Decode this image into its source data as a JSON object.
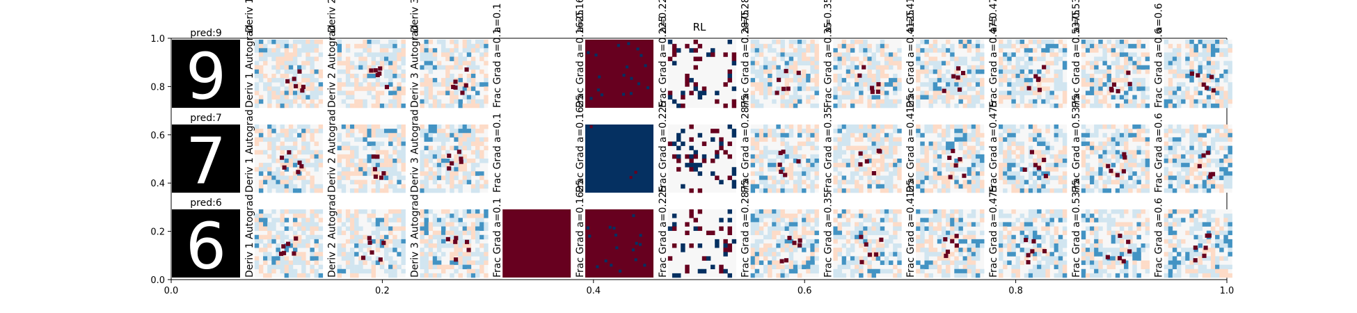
{
  "chart_data": {
    "type": "heatmap",
    "title": "RL",
    "xlabel": "",
    "ylabel": "",
    "xlim": [
      0.0,
      1.0
    ],
    "ylim": [
      0.0,
      1.0
    ],
    "x_ticks": [
      "0.0",
      "0.2",
      "0.4",
      "0.6",
      "0.8",
      "1.0"
    ],
    "y_ticks": [
      "0.0",
      "0.2",
      "0.4",
      "0.6",
      "0.8",
      "1.0"
    ],
    "grid": false,
    "columns": [
      {
        "vertical_label": "",
        "top_label": ""
      },
      {
        "vertical_label": "Deriv 1 Autograd",
        "top_label": "Deriv 1 Autograd"
      },
      {
        "vertical_label": "Deriv 2 Autograd",
        "top_label": "Deriv 2 Autograd"
      },
      {
        "vertical_label": "Deriv 3 Autograd",
        "top_label": "Deriv 3 Autograd"
      },
      {
        "vertical_label": "Frac Grad a=0.1",
        "top_label": "a=0.1"
      },
      {
        "vertical_label": "Frac Grad a=0.1625",
        "top_label": "a=0.1625"
      },
      {
        "vertical_label": "Frac Grad a=0.225",
        "top_label": "a=0.225"
      },
      {
        "vertical_label": "Frac Grad a=0.2875",
        "top_label": "a=0.2875"
      },
      {
        "vertical_label": "Frac Grad a=0.35",
        "top_label": "a=0.35"
      },
      {
        "vertical_label": "Frac Grad a=0.4125",
        "top_label": "a=0.4125"
      },
      {
        "vertical_label": "Frac Grad a=0.475",
        "top_label": "a=0.475"
      },
      {
        "vertical_label": "Frac Grad a=0.5375",
        "top_label": "a=0.5375"
      },
      {
        "vertical_label": "Frac Grad a=0.6",
        "top_label": "a=0.6"
      }
    ],
    "rows": [
      {
        "digit": 9,
        "prediction_label": "pred:9",
        "cells": [
          "digit",
          "map",
          "map",
          "map",
          "blank",
          "solid-red",
          "sparse",
          "map",
          "map",
          "map",
          "map",
          "map",
          "map"
        ]
      },
      {
        "digit": 7,
        "prediction_label": "pred:7",
        "cells": [
          "digit",
          "map",
          "map",
          "map",
          "blank",
          "solid-blue",
          "sparse",
          "map",
          "map",
          "map",
          "map",
          "map",
          "map"
        ]
      },
      {
        "digit": 6,
        "prediction_label": "pred:6",
        "cells": [
          "digit",
          "map",
          "map",
          "map",
          "solid-red",
          "solid-red",
          "sparse",
          "map",
          "map",
          "map",
          "map",
          "map",
          "map"
        ]
      }
    ],
    "colormap": "RdBu diverging",
    "colors": {
      "strong_negative": "#67001f",
      "negative": "#d6604d",
      "light_negative": "#fddbc7",
      "neutral": "#f7f7f7",
      "light_positive": "#d1e5f0",
      "positive": "#4393c3",
      "strong_positive": "#053061",
      "digit_background": "#000000",
      "digit_stroke": "#ffffff"
    }
  }
}
